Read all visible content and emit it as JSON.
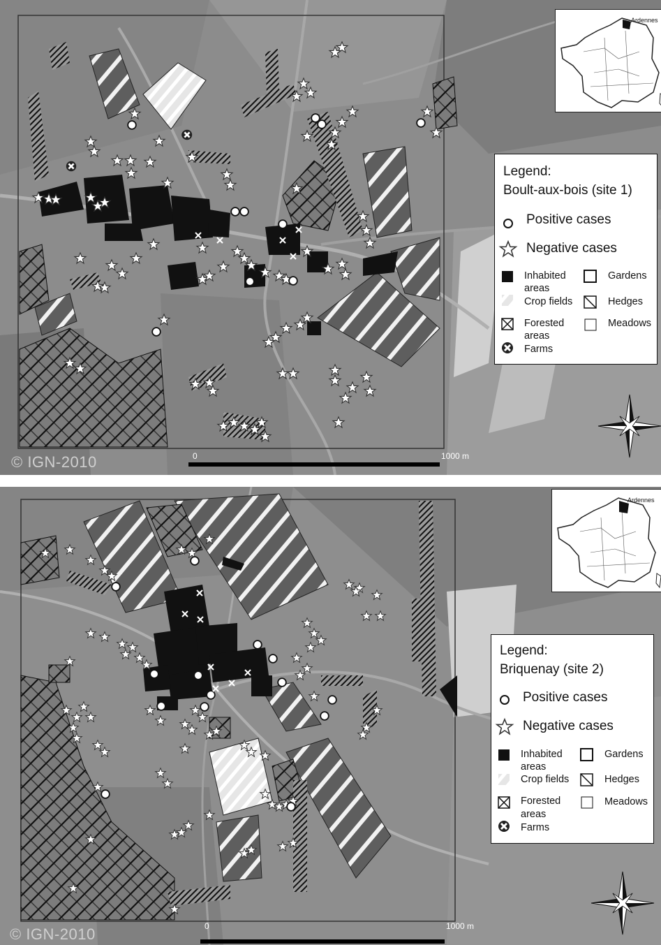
{
  "maps": [
    {
      "legend_title": "Legend:",
      "site": "Boult-aux-bois (site 1)",
      "positive": "Positive cases",
      "negative": "Negative cases",
      "inhabited": "Inhabited",
      "inhabited2": "areas",
      "crop": "Crop fields",
      "forested": "Forested",
      "forested2": "areas",
      "farms": "Farms",
      "gardens": "Gardens",
      "hedges": "Hedges",
      "meadows": "Meadows",
      "copyright": "© IGN-2010",
      "scale_start": "0",
      "scale_end": "1000 m",
      "inset_label": "Ardennes"
    },
    {
      "legend_title": "Legend:",
      "site": "Briquenay (site 2)",
      "positive": "Positive cases",
      "negative": "Negative cases",
      "inhabited": "Inhabited",
      "inhabited2": "areas",
      "crop": "Crop fields",
      "forested": "Forested",
      "forested2": "areas",
      "farms": "Farms",
      "gardens": "Gardens",
      "hedges": "Hedges",
      "meadows": "Meadows",
      "copyright": "© IGN-2010",
      "scale_start": "0",
      "scale_end": "1000 m",
      "inset_label": "Ardennes"
    }
  ],
  "colors": {
    "imagery": "#8a8a8a",
    "inhabited": "#111111",
    "symbol": "#ffffff"
  }
}
